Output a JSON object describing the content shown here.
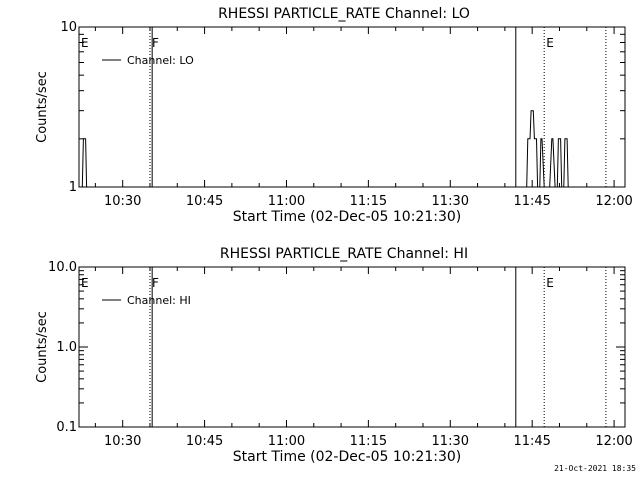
{
  "chart_data": [
    {
      "type": "line",
      "title": "RHESSI PARTICLE_RATE Channel: LO",
      "xlabel": "Start Time (02-Dec-05 10:21:30)",
      "ylabel": "Counts/sec",
      "yscale": "log",
      "ylim": [
        1,
        10
      ],
      "xlim_minutes": [
        622.0,
        722.0
      ],
      "x_ticks": [
        "10:30",
        "10:45",
        "11:00",
        "11:15",
        "11:30",
        "11:45",
        "12:00"
      ],
      "y_ticks": [
        "1",
        "10"
      ],
      "legend": "top-left",
      "series": [
        {
          "name": "Channel: LO",
          "x": [
            622.0,
            622.6,
            622.8,
            623.2,
            623.4,
            624.0,
            703.4,
            704.0,
            704.2,
            704.6,
            704.8,
            705.2,
            705.4,
            705.8,
            706.0,
            706.4,
            706.6,
            706.8,
            707.2,
            707.6,
            707.8,
            708.2,
            708.6,
            708.8,
            709.2,
            709.6,
            709.8,
            710.2,
            710.4,
            710.8,
            711.0,
            711.4,
            711.6,
            722.0
          ],
          "y": [
            1,
            1,
            2,
            2,
            1,
            1,
            1,
            1,
            2,
            2,
            3,
            3,
            2,
            2,
            1,
            1,
            2,
            2,
            1,
            1,
            1,
            1,
            2,
            2,
            1,
            1,
            2,
            2,
            1,
            1,
            2,
            2,
            1,
            1
          ]
        }
      ],
      "markers": [
        {
          "label": "E",
          "x": 622.0,
          "style": "solid"
        },
        {
          "label": "F",
          "x": 635.0,
          "style": "dotted"
        },
        {
          "label": "",
          "x": 635.4,
          "style": "solid"
        },
        {
          "label": "",
          "x": 702.0,
          "style": "solid"
        },
        {
          "label": "E",
          "x": 707.2,
          "style": "dotted"
        },
        {
          "label": "",
          "x": 718.5,
          "style": "dotted"
        }
      ]
    },
    {
      "type": "line",
      "title": "RHESSI PARTICLE_RATE Channel: HI",
      "xlabel": "Start Time (02-Dec-05 10:21:30)",
      "ylabel": "Counts/sec",
      "yscale": "log",
      "ylim": [
        0.1,
        10.0
      ],
      "xlim_minutes": [
        622.0,
        722.0
      ],
      "x_ticks": [
        "10:30",
        "10:45",
        "11:00",
        "11:15",
        "11:30",
        "11:45",
        "12:00"
      ],
      "y_ticks": [
        "0.1",
        "1.0",
        "10.0"
      ],
      "legend": "top-left",
      "series": [
        {
          "name": "Channel: HI",
          "x": [],
          "y": []
        }
      ],
      "markers": [
        {
          "label": "E",
          "x": 622.0,
          "style": "solid"
        },
        {
          "label": "F",
          "x": 635.0,
          "style": "dotted"
        },
        {
          "label": "",
          "x": 635.4,
          "style": "solid"
        },
        {
          "label": "",
          "x": 702.0,
          "style": "solid"
        },
        {
          "label": "E",
          "x": 707.2,
          "style": "dotted"
        },
        {
          "label": "",
          "x": 718.5,
          "style": "dotted"
        }
      ]
    }
  ],
  "footer": {
    "timestamp": "21-Oct-2021 18:35"
  }
}
